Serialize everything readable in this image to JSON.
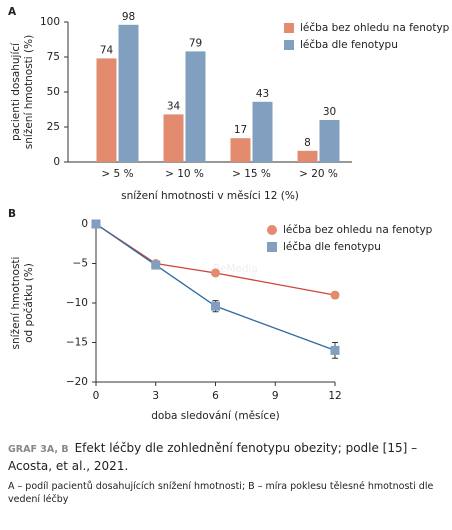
{
  "chart_data": [
    {
      "type": "bar",
      "panel": "A",
      "categories": [
        "> 5 %",
        "> 10 %",
        "> 15 %",
        "> 20 %"
      ],
      "series": [
        {
          "name": "léčba bez ohledu na fenotyp",
          "color": "#e38b6f",
          "values": [
            74,
            34,
            17,
            8
          ]
        },
        {
          "name": "léčba dle fenotypu",
          "color": "#819fbe",
          "values": [
            98,
            79,
            43,
            30
          ]
        }
      ],
      "ylim": [
        0,
        100
      ],
      "yticks": [
        0,
        25,
        50,
        75,
        100
      ],
      "y_label": [
        "pacienti dosahující",
        "snížení hmotnosti (%)"
      ],
      "x_label": "snížení hmotnosti v měsíci 12 (%)",
      "legend": "upper right"
    },
    {
      "type": "line",
      "panel": "B",
      "x": [
        0,
        3,
        6,
        12
      ],
      "series": [
        {
          "name": "léčba bez ohledu na fenotyp",
          "color": "#d0433b",
          "marker_color": "#e38b6f",
          "marker": "circle",
          "values": [
            0,
            -5,
            -6.2,
            -9
          ],
          "errors": [
            0,
            0.3,
            0.3,
            0.4
          ]
        },
        {
          "name": "léčba dle fenotypu",
          "color": "#2e6aa0",
          "marker_color": "#819fbe",
          "marker": "square",
          "values": [
            0,
            -5.2,
            -10.4,
            -16
          ],
          "errors": [
            0,
            0.4,
            0.7,
            1
          ]
        }
      ],
      "xlim": [
        0,
        12
      ],
      "xticks": [
        0,
        3,
        6,
        9,
        12
      ],
      "ylim": [
        -20,
        0
      ],
      "yticks": [
        {
          "value": -20,
          "label": "−20"
        },
        {
          "value": -15,
          "label": "−15"
        },
        {
          "value": -10,
          "label": "−10"
        },
        {
          "value": -5,
          "label": "−5"
        },
        0
      ],
      "y_label": [
        "snížení hmotnosti",
        "od počátku (%)"
      ],
      "x_label": "doba sledování (měsíce)",
      "watermark": "ReMedia",
      "legend": "upper right"
    }
  ],
  "caption": {
    "label": "GRAF 3A, B",
    "title": "Efekt léčby dle zohlednění fenotypu obezity; podle [15] – Acosta, et al., 2021.",
    "note": "A – podíl pacientů dosahujících snížení hmotnosti; B – míra poklesu tělesné hmotnosti dle vedení léčby"
  }
}
